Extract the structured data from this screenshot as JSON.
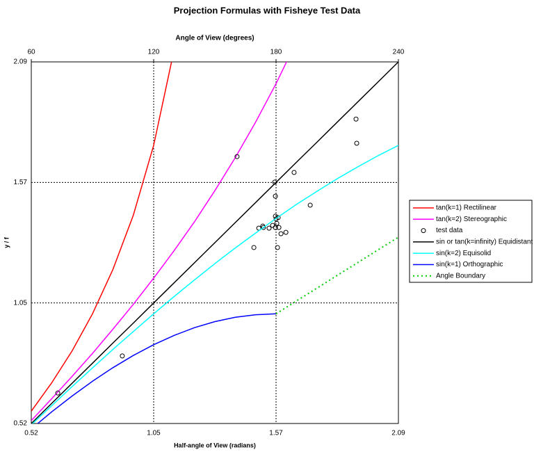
{
  "chart_data": {
    "type": "line",
    "title": "Projection Formulas with Fisheye Test Data",
    "xlabel": "Half-angle of View (radians)",
    "ylabel": "y / f",
    "x2label": "Angle of View (degrees)",
    "xlim": [
      0.5236,
      2.0944
    ],
    "xticks": [
      {
        "value": 0.5236,
        "label": "0.52"
      },
      {
        "value": 1.0472,
        "label": "1.05"
      },
      {
        "value": 1.5708,
        "label": "1.57"
      },
      {
        "value": 2.0944,
        "label": "2.09"
      }
    ],
    "ylim": [
      0.5236,
      2.0944
    ],
    "yticks": [
      {
        "value": 0.5236,
        "label": "0.52"
      },
      {
        "value": 1.0472,
        "label": "1.05"
      },
      {
        "value": 1.5708,
        "label": "1.57"
      },
      {
        "value": 2.0944,
        "label": "2.09"
      }
    ],
    "x2lim": [
      60,
      240
    ],
    "x2ticks": [
      60,
      120,
      180,
      240
    ],
    "grid": true,
    "legend": "right",
    "x": [
      0.5236,
      0.6109,
      0.6981,
      0.7854,
      0.8727,
      0.9599,
      1.0472,
      1.1345,
      1.2217,
      1.309,
      1.3963,
      1.4835,
      1.5708,
      1.6581,
      1.7453,
      1.8326,
      1.9199,
      2.0071,
      2.0944
    ],
    "series": [
      {
        "name": "tan(k=1) Rectilinear",
        "color": "#ff0000",
        "values": [
          0.577,
          0.7,
          0.839,
          1.0,
          1.192,
          1.428,
          1.732,
          2.145,
          null,
          null,
          null,
          null,
          null,
          null,
          null,
          null,
          null,
          null,
          null
        ]
      },
      {
        "name": "tan(k=2) Stereographic",
        "color": "#ff00ff",
        "values": [
          0.536,
          0.631,
          0.728,
          0.828,
          0.933,
          1.041,
          1.155,
          1.274,
          1.4,
          1.535,
          1.678,
          1.833,
          2.0,
          2.183,
          null,
          null,
          null,
          null,
          null
        ]
      },
      {
        "name": "test data",
        "color": "#000000",
        "mode": "markers",
        "x": [
          0.637,
          0.913,
          1.404,
          1.476,
          1.497,
          1.514,
          1.517,
          1.541,
          1.556,
          1.565,
          1.568,
          1.568,
          1.571,
          1.574,
          1.568,
          1.577,
          1.58,
          1.583,
          1.592,
          1.613,
          1.648,
          1.717,
          1.913,
          1.916
        ],
        "values": [
          0.656,
          0.817,
          1.683,
          1.288,
          1.372,
          1.381,
          1.375,
          1.372,
          1.384,
          1.572,
          1.511,
          1.424,
          1.412,
          1.393,
          1.375,
          1.288,
          1.418,
          1.375,
          1.348,
          1.354,
          1.614,
          1.472,
          1.846,
          1.741
        ]
      },
      {
        "name": "sin or tan(k=infinity) Equidistant",
        "color": "#000000",
        "values": [
          0.5236,
          0.6109,
          0.6981,
          0.7854,
          0.8727,
          0.9599,
          1.0472,
          1.1345,
          1.2217,
          1.309,
          1.3963,
          1.4835,
          1.5708,
          1.6581,
          1.7453,
          1.8326,
          1.9199,
          2.0071,
          2.0944
        ]
      },
      {
        "name": "sin(k=2) Equisolid",
        "color": "#00ffff",
        "values": [
          0.518,
          0.601,
          0.684,
          0.765,
          0.845,
          0.923,
          1.0,
          1.075,
          1.147,
          1.218,
          1.286,
          1.351,
          1.414,
          1.475,
          1.532,
          1.587,
          1.638,
          1.687,
          1.732
        ]
      },
      {
        "name": "sin(k=1) Orthographic",
        "color": "#0000ff",
        "values": [
          0.5,
          0.574,
          0.643,
          0.707,
          0.766,
          0.819,
          0.866,
          0.906,
          0.94,
          0.966,
          0.985,
          0.996,
          1.0,
          null,
          null,
          null,
          null,
          null,
          null
        ]
      },
      {
        "name": "Angle Boundary",
        "color": "#00cc00",
        "dash": "dotted",
        "values": [
          null,
          null,
          null,
          null,
          null,
          null,
          null,
          null,
          null,
          null,
          null,
          null,
          1.0,
          1.056,
          1.111,
          1.167,
          1.222,
          1.278,
          1.333
        ]
      }
    ]
  }
}
